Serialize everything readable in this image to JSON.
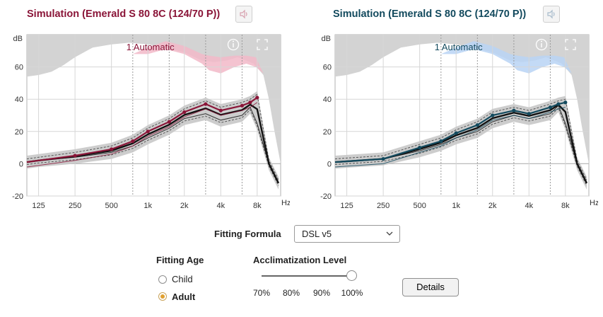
{
  "left_panel": {
    "title": "Simulation (Emerald S 80 8C (124/70 P))",
    "mode_label": "1 Automatic",
    "accent": "#8a1538",
    "highlight": "#f2b8c8"
  },
  "right_panel": {
    "title": "Simulation (Emerald S 80 8C (124/70 P))",
    "mode_label": "1 Automatic",
    "accent": "#134a5e",
    "highlight": "#b9d4f5"
  },
  "icons": {
    "speaker": "speaker-muted-icon",
    "info": "info-icon",
    "fullscreen": "fullscreen-icon",
    "dropdown": "chevron-down-icon"
  },
  "axis": {
    "y_unit": "dB",
    "x_unit": "Hz",
    "y_ticks": [
      "60",
      "40",
      "20",
      "0",
      "-20"
    ],
    "x_ticks": [
      "125",
      "250",
      "500",
      "1k",
      "2k",
      "4k",
      "8k"
    ]
  },
  "fitting_formula": {
    "label": "Fitting Formula",
    "value": "DSL v5"
  },
  "fitting_age": {
    "label": "Fitting Age",
    "options": [
      "Child",
      "Adult"
    ],
    "selected": "Adult"
  },
  "acclimatization": {
    "label": "Acclimatization Level",
    "ticks": [
      "70%",
      "80%",
      "90%",
      "100%"
    ],
    "value": "100%"
  },
  "details_button": "Details",
  "chart_data": [
    {
      "type": "line",
      "title": "Simulation (Emerald S 80 8C (124/70 P))",
      "ylabel": "dB",
      "xlabel": "Hz",
      "ylim": [
        -20,
        80
      ],
      "x_scale": "log",
      "x_ticks": [
        125,
        250,
        500,
        1000,
        2000,
        4000,
        8000
      ],
      "x": [
        100,
        125,
        250,
        500,
        750,
        1000,
        1500,
        2000,
        3000,
        4000,
        6000,
        7000,
        8000,
        10000,
        12000
      ],
      "series": [
        {
          "values": [
            1,
            2,
            5,
            9,
            14,
            20,
            26,
            32,
            37,
            33,
            36,
            38,
            41,
            null,
            null
          ]
        },
        {
          "values": [
            1,
            2,
            4,
            7,
            11,
            16,
            22,
            28,
            31,
            27,
            30,
            35,
            25,
            0,
            -12
          ]
        }
      ],
      "grid": true
    },
    {
      "type": "line",
      "title": "Simulation (Emerald S 80 8C (124/70 P))",
      "ylabel": "dB",
      "xlabel": "Hz",
      "ylim": [
        -20,
        80
      ],
      "x_scale": "log",
      "x_ticks": [
        125,
        250,
        500,
        1000,
        2000,
        4000,
        8000
      ],
      "x": [
        100,
        125,
        250,
        500,
        750,
        1000,
        1500,
        2000,
        3000,
        4000,
        6000,
        7000,
        8000,
        10000,
        12000
      ],
      "series": [
        {
          "values": [
            1,
            1.5,
            3,
            10,
            14,
            19,
            24,
            30,
            33,
            31,
            35,
            37,
            38,
            null,
            null
          ]
        },
        {
          "values": [
            1,
            1.5,
            3,
            8,
            12,
            16,
            20,
            26,
            30,
            28,
            31,
            36,
            25,
            0,
            -12
          ]
        }
      ],
      "grid": true
    }
  ]
}
